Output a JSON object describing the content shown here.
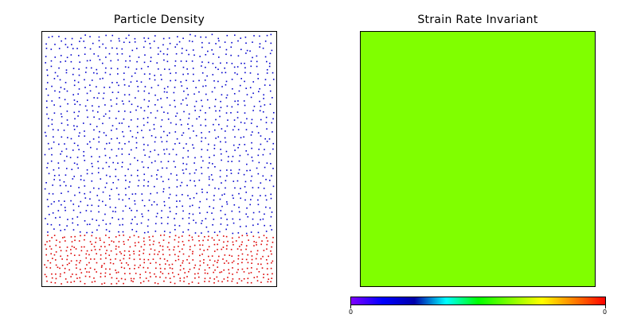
{
  "chart_data": [
    {
      "type": "scatter",
      "title": "Particle Density",
      "xlim": [
        0,
        1
      ],
      "ylim": [
        0,
        1
      ],
      "grid": false,
      "series": [
        {
          "color": "#0000cc",
          "region": {
            "x": [
              0,
              1
            ],
            "y": [
              0.2,
              1
            ]
          },
          "count": 1150
        },
        {
          "color": "#dd0000",
          "region": {
            "x": [
              0,
              1
            ],
            "y": [
              0,
              0.2
            ]
          },
          "count": 520
        }
      ]
    },
    {
      "type": "heatmap",
      "title": "Strain Rate Invariant",
      "field_color": "#80ff00",
      "colorbar": {
        "min_label": "0",
        "max_label": "0",
        "stops": [
          "#8000ff",
          "#0000ff",
          "#0000aa",
          "#00ffff",
          "#00ff00",
          "#80ff00",
          "#ffff00",
          "#ff8000",
          "#ff0000"
        ]
      }
    }
  ],
  "colors": {
    "frame": "#000000",
    "background": "#ffffff"
  }
}
